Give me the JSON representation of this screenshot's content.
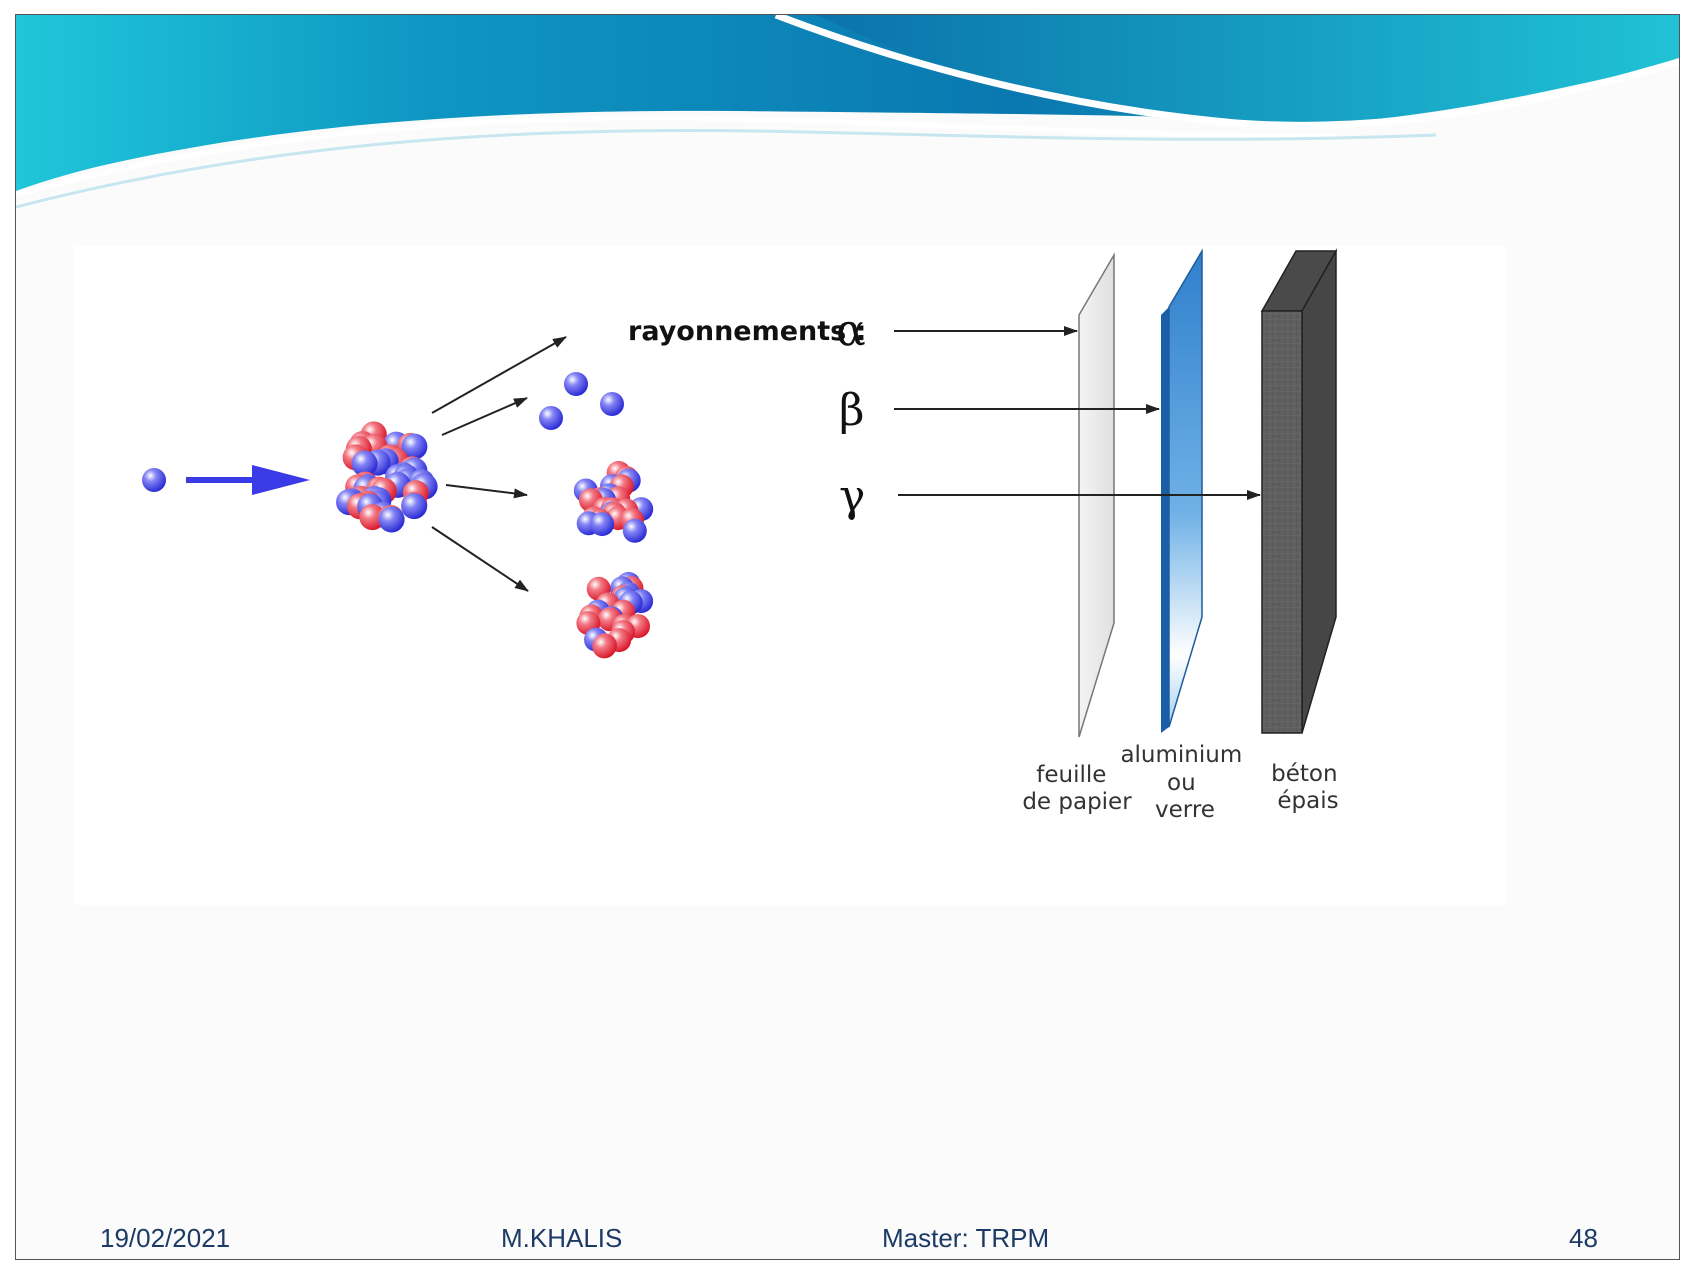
{
  "diagram": {
    "radiations_label": "rayonnements :",
    "alpha_symbol": "α",
    "beta_symbol": "β",
    "gamma_symbol": "γ",
    "barriers": {
      "paper": [
        "feuille",
        "de papier"
      ],
      "aluminium": [
        "aluminium",
        "ou",
        "verre"
      ],
      "concrete": [
        "béton",
        "épais"
      ]
    }
  },
  "footer": {
    "date": "19/02/2021",
    "author": "M.KHALIS",
    "course": "Master: TRPM",
    "page_number": "48"
  },
  "colors": {
    "banner_dark": "#0a78b0",
    "banner_light": "#1fc4d8",
    "proton": "#e8283a",
    "neutron": "#3a3ae6",
    "aluminium": "#3a8fd4",
    "concrete": "#5e5e5e",
    "footer_text": "#1c3a66"
  }
}
